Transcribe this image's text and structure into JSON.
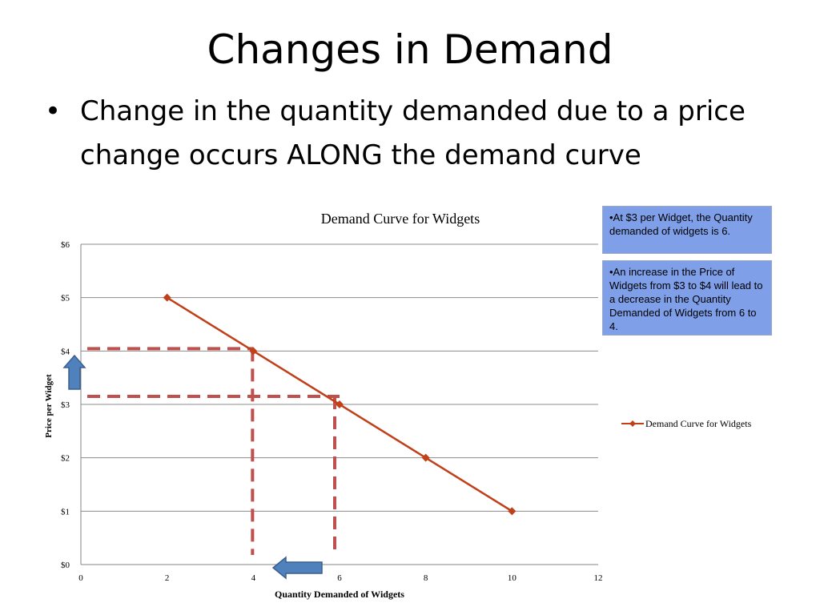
{
  "slide": {
    "title": "Changes  in Demand",
    "bullet_marker": "•",
    "bullet": "Change in the quantity demanded due to a price change occurs ALONG the demand curve"
  },
  "notes": [
    "•At $3 per Widget, the Quantity demanded of widgets is 6.",
    "•An increase in the Price of Widgets from $3 to $4 will lead to a decrease in the Quantity Demanded of Widgets from 6 to 4."
  ],
  "colors": {
    "series": "#c0401a",
    "guide": "#c0504d",
    "arrow": "#4f81bd",
    "note_bg": "#7f9fe9"
  },
  "chart_data": {
    "type": "line",
    "title": "Demand Curve for Widgets",
    "xlabel": "Quantity Demanded of Widgets",
    "ylabel": "Price per Widget",
    "xlim": [
      0,
      12
    ],
    "ylim": [
      0,
      6
    ],
    "x_ticks": [
      "0",
      "2",
      "4",
      "6",
      "8",
      "10",
      "12"
    ],
    "y_ticks": [
      "$0",
      "$1",
      "$2",
      "$3",
      "$4",
      "$5",
      "$6"
    ],
    "grid": true,
    "legend_position": "right",
    "series": [
      {
        "name": "Demand Curve for Widgets",
        "x": [
          2,
          4,
          6,
          8,
          10
        ],
        "y": [
          5,
          4,
          3,
          2,
          1
        ]
      }
    ],
    "annotations": [
      {
        "type": "dashed-guide",
        "x": 4,
        "y": 4
      },
      {
        "type": "dashed-guide",
        "x": 6,
        "y": 3
      },
      {
        "type": "arrow",
        "direction": "up",
        "axis": "y",
        "meaning": "price increase"
      },
      {
        "type": "arrow",
        "direction": "left",
        "axis": "x",
        "meaning": "quantity decrease"
      }
    ]
  }
}
